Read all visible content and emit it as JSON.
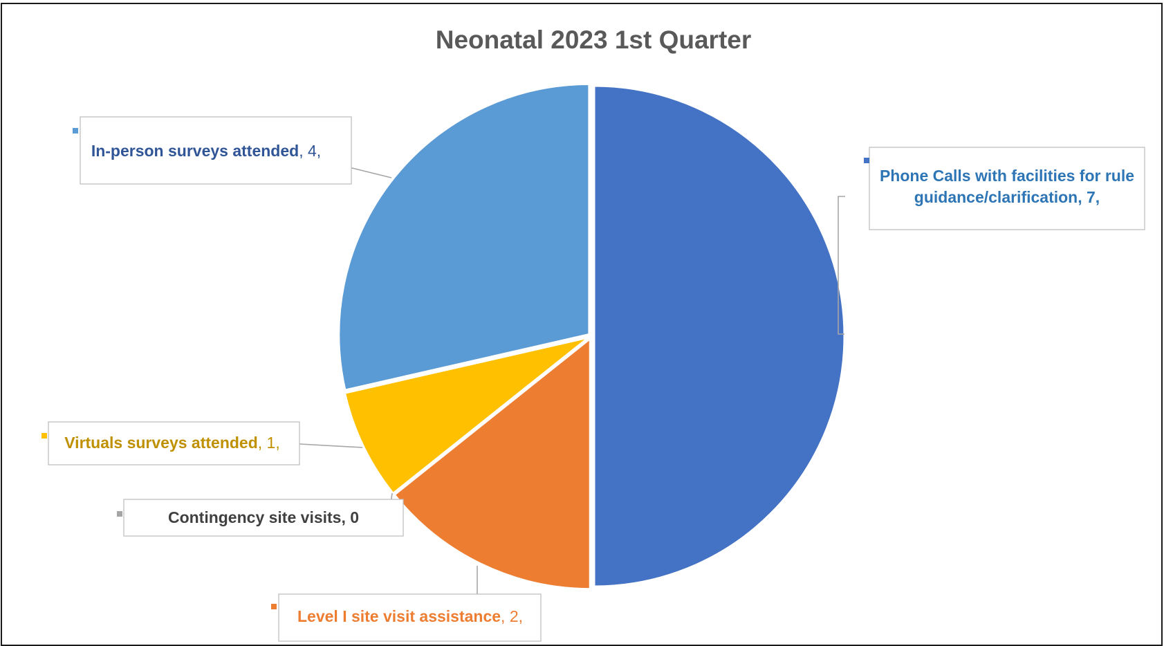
{
  "chart_data": {
    "type": "pie",
    "title": "Neonatal 2023 1st Quarter",
    "categories": [
      "Phone Calls with facilities for rule guidance/clarification",
      "Level I site visit assistance",
      "Contingency site visits",
      "Virtuals surveys attended",
      "In-person surveys attended"
    ],
    "values": [
      7,
      2,
      0,
      1,
      4
    ],
    "colors": [
      "#4472c4",
      "#ed7d31",
      "#a5a5a5",
      "#ffc000",
      "#5b9bd5"
    ],
    "start_angle_deg": 0,
    "direction": "clockwise",
    "data_labels": [
      {
        "lines": [
          [
            "Phone Calls with facilities for rule",
            ""
          ],
          [
            "guidance/clarification, 7,",
            ""
          ]
        ],
        "color": "#2e75b6"
      },
      {
        "lines": [
          [
            "Level I site visit assistance",
            ", 2,"
          ]
        ],
        "color": "#ed7d31"
      },
      {
        "lines": [
          [
            "Contingency site visits, 0",
            ""
          ]
        ],
        "color": "#404040"
      },
      {
        "lines": [
          [
            "Virtuals surveys attended",
            ", 1,"
          ]
        ],
        "color": "#bf9000"
      },
      {
        "lines": [
          [
            "In-person surveys attended",
            ", 4,"
          ]
        ],
        "color": "#2f5597"
      }
    ],
    "legend": "none"
  }
}
